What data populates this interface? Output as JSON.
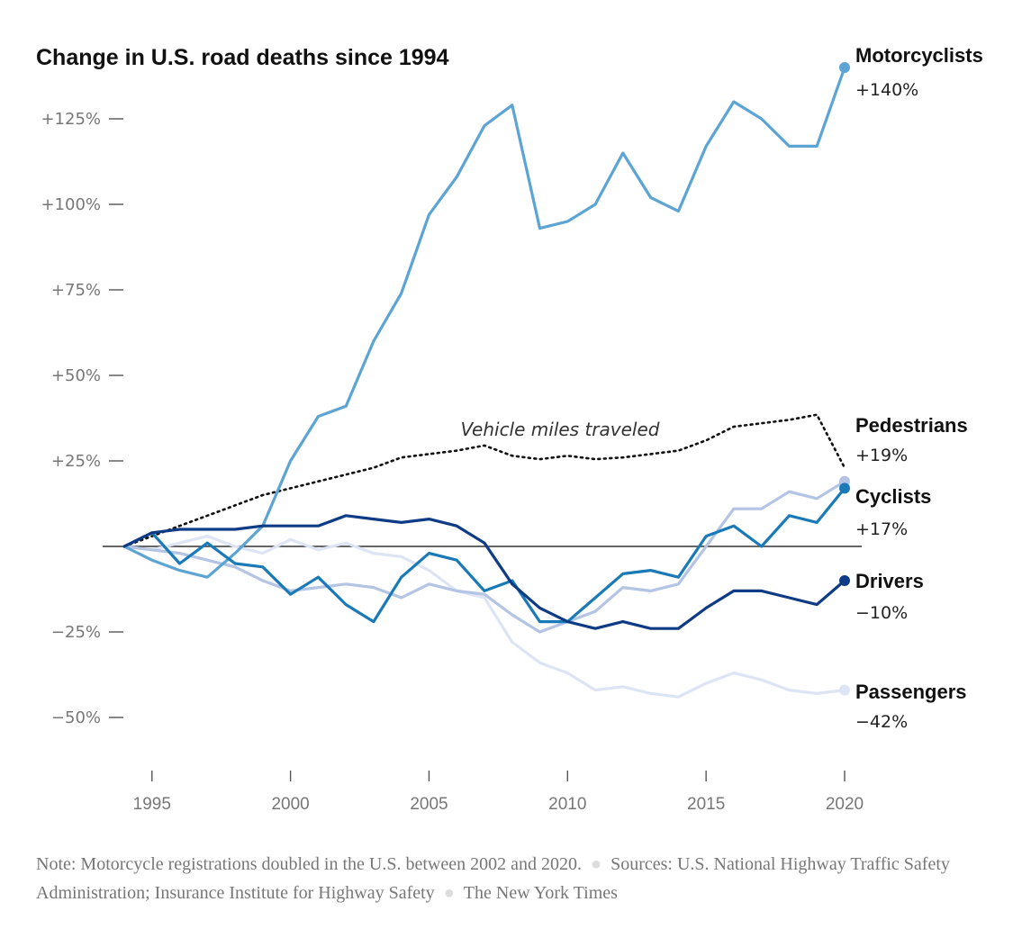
{
  "chart_data": {
    "type": "line",
    "title": "Change in U.S. road deaths since 1994",
    "x": [
      1994,
      1995,
      1996,
      1997,
      1998,
      1999,
      2000,
      2001,
      2002,
      2003,
      2004,
      2005,
      2006,
      2007,
      2008,
      2009,
      2010,
      2011,
      2012,
      2013,
      2014,
      2015,
      2016,
      2017,
      2018,
      2019,
      2020
    ],
    "xlim": [
      1994,
      2020
    ],
    "ylim": [
      -50,
      140
    ],
    "x_ticks": [
      1995,
      2000,
      2005,
      2010,
      2015,
      2020
    ],
    "x_tick_labels": [
      "1995",
      "2000",
      "2005",
      "2010",
      "2015",
      "2020"
    ],
    "y_ticks": [
      125,
      100,
      75,
      50,
      25,
      -25,
      -50
    ],
    "y_tick_labels": [
      "+125%",
      "+100%",
      "+75%",
      "+50%",
      "+25%",
      "−25%",
      "−50%"
    ],
    "zero_line": true,
    "series": [
      {
        "name": "Passengers",
        "end_label": "−42%",
        "color": "#dde4f3",
        "values": [
          0,
          -1,
          1,
          3,
          0,
          -2,
          2,
          -1,
          1,
          -2,
          -3,
          -7,
          -13,
          -15,
          -28,
          -34,
          -37,
          -42,
          -41,
          -43,
          -44,
          -40,
          -37,
          -39,
          -42,
          -43,
          -42
        ]
      },
      {
        "name": "Pedestrians",
        "end_label": "+19%",
        "color": "#b3c4e4",
        "values": [
          0,
          -1,
          -2,
          -4,
          -6,
          -10,
          -13,
          -12,
          -11,
          -12,
          -15,
          -11,
          -13,
          -14,
          -20,
          -25,
          -22,
          -19,
          -12,
          -13,
          -11,
          0,
          11,
          11,
          16,
          14,
          19
        ]
      },
      {
        "name": "Motorcyclists",
        "end_label": "+140%",
        "color": "#5ba4d4",
        "values": [
          0,
          -4,
          -7,
          -9,
          -2,
          6,
          25,
          38,
          41,
          60,
          74,
          97,
          108,
          123,
          129,
          93,
          95,
          100,
          115,
          102,
          98,
          117,
          130,
          125,
          117,
          117,
          140
        ]
      },
      {
        "name": "Cyclists",
        "end_label": "+17%",
        "color": "#1a7ab8",
        "values": [
          0,
          4,
          -5,
          1,
          -5,
          -6,
          -14,
          -9,
          -17,
          -22,
          -9,
          -2,
          -4,
          -13,
          -10,
          -22,
          -22,
          -15,
          -8,
          -7,
          -9,
          3,
          6,
          0,
          9,
          7,
          17
        ]
      },
      {
        "name": "Drivers",
        "end_label": "−10%",
        "color": "#0e3b86",
        "values": [
          0,
          4,
          5,
          5,
          5,
          6,
          6,
          6,
          9,
          8,
          7,
          8,
          6,
          1,
          -11,
          -18,
          -22,
          -24,
          -22,
          -24,
          -24,
          -18,
          -13,
          -13,
          -15,
          -17,
          -10
        ]
      }
    ],
    "reference_series": {
      "name": "Vehicle miles traveled",
      "color": "#111111",
      "style": "dotted",
      "x": [
        1994,
        1995,
        1996,
        1997,
        1998,
        1999,
        2000,
        2001,
        2002,
        2003,
        2004,
        2005,
        2006,
        2007,
        2008,
        2009,
        2010,
        2011,
        2012,
        2013,
        2014,
        2015,
        2016,
        2017,
        2018,
        2019,
        2020
      ],
      "values": [
        0,
        3,
        6,
        9,
        12,
        15,
        17,
        19,
        21,
        23,
        26,
        27,
        28,
        29.5,
        26.5,
        25.5,
        26.5,
        25.5,
        26,
        27,
        28,
        31,
        35,
        36,
        37,
        38.5,
        23
      ]
    }
  },
  "footnote": {
    "note": "Note: Motorcycle registrations doubled in the U.S. between 2002 and 2020.",
    "sources": "Sources: U.S. National Highway Traffic Safety Administration; Insurance Institute for Highway Safety",
    "credit": "The New York Times",
    "separator": "●"
  }
}
